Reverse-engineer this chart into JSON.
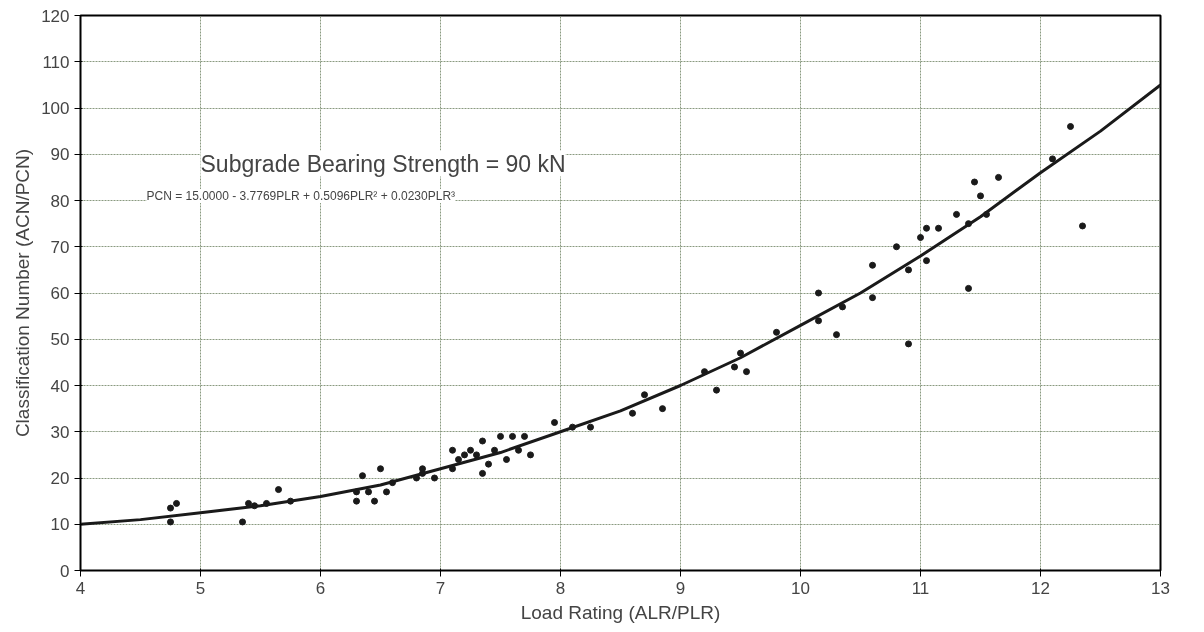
{
  "chart_data": {
    "type": "scatter",
    "xlabel": "Load Rating (ALR/PLR)",
    "ylabel": "Classification Number (ACN/PCN)",
    "annotations": [
      "Subgrade Bearing Strength = 90 kN",
      "PCN = 15.0000 - 3.7769PLR + 0.5096PLR² + 0.0230PLR³"
    ],
    "xlim": [
      4,
      13
    ],
    "ylim": [
      0,
      120
    ],
    "xticks": [
      4,
      5,
      6,
      7,
      8,
      9,
      10,
      11,
      12,
      13
    ],
    "yticks": [
      0,
      10,
      20,
      30,
      40,
      50,
      60,
      70,
      80,
      90,
      100,
      110,
      120
    ],
    "grid": true,
    "series": [
      {
        "marker": "circle",
        "color": "#1a1a1a",
        "x": [
          4.75,
          4.8,
          4.75,
          5.35,
          5.4,
          5.45,
          5.55,
          5.65,
          5.75,
          6.3,
          6.3,
          6.35,
          6.4,
          6.45,
          6.5,
          6.55,
          6.6,
          6.8,
          6.85,
          6.85,
          6.95,
          7.1,
          7.1,
          7.15,
          7.2,
          7.25,
          7.3,
          7.35,
          7.35,
          7.4,
          7.45,
          7.5,
          7.55,
          7.6,
          7.65,
          7.7,
          7.75,
          7.95,
          8.1,
          8.25,
          8.6,
          8.7,
          8.85,
          9.2,
          9.3,
          9.45,
          9.5,
          9.55,
          9.8,
          10.15,
          10.15,
          10.3,
          10.35,
          10.6,
          10.6,
          10.8,
          10.9,
          10.9,
          11.0,
          11.05,
          11.05,
          11.15,
          11.3,
          11.4,
          11.4,
          11.45,
          11.5,
          11.55,
          11.65,
          12.1,
          12.25,
          12.35
        ],
        "values": [
          13.5,
          14.5,
          10.5,
          10.5,
          14.5,
          14,
          14.5,
          17.5,
          15,
          17,
          15,
          20.5,
          17,
          15,
          22,
          17,
          19,
          20,
          22,
          21,
          20,
          22,
          26,
          24,
          25,
          26,
          25,
          21,
          28,
          23,
          26,
          29,
          24,
          29,
          26,
          29,
          25,
          32,
          31,
          31,
          34,
          38,
          35,
          43,
          39,
          44,
          47,
          43,
          51.5,
          60,
          54,
          51,
          57,
          66,
          59,
          70,
          65,
          49,
          72,
          74,
          67,
          74,
          77,
          61,
          75,
          84,
          81,
          77,
          85,
          89,
          96,
          74.5
        ]
      },
      {
        "type": "line",
        "marker": "none",
        "color": "#1a1a1a",
        "line_style": "solid",
        "x": [
          4,
          4.5,
          5,
          5.5,
          6,
          6.5,
          7,
          7.5,
          8,
          8.5,
          9,
          9.5,
          10,
          10.5,
          11,
          11.5,
          12,
          12.5,
          13
        ],
        "values": [
          10,
          11,
          12.5,
          14,
          16,
          18.5,
          22,
          25.5,
          30,
          34.5,
          40,
          46,
          53,
          60,
          68,
          76.5,
          86,
          95,
          105
        ]
      }
    ]
  }
}
